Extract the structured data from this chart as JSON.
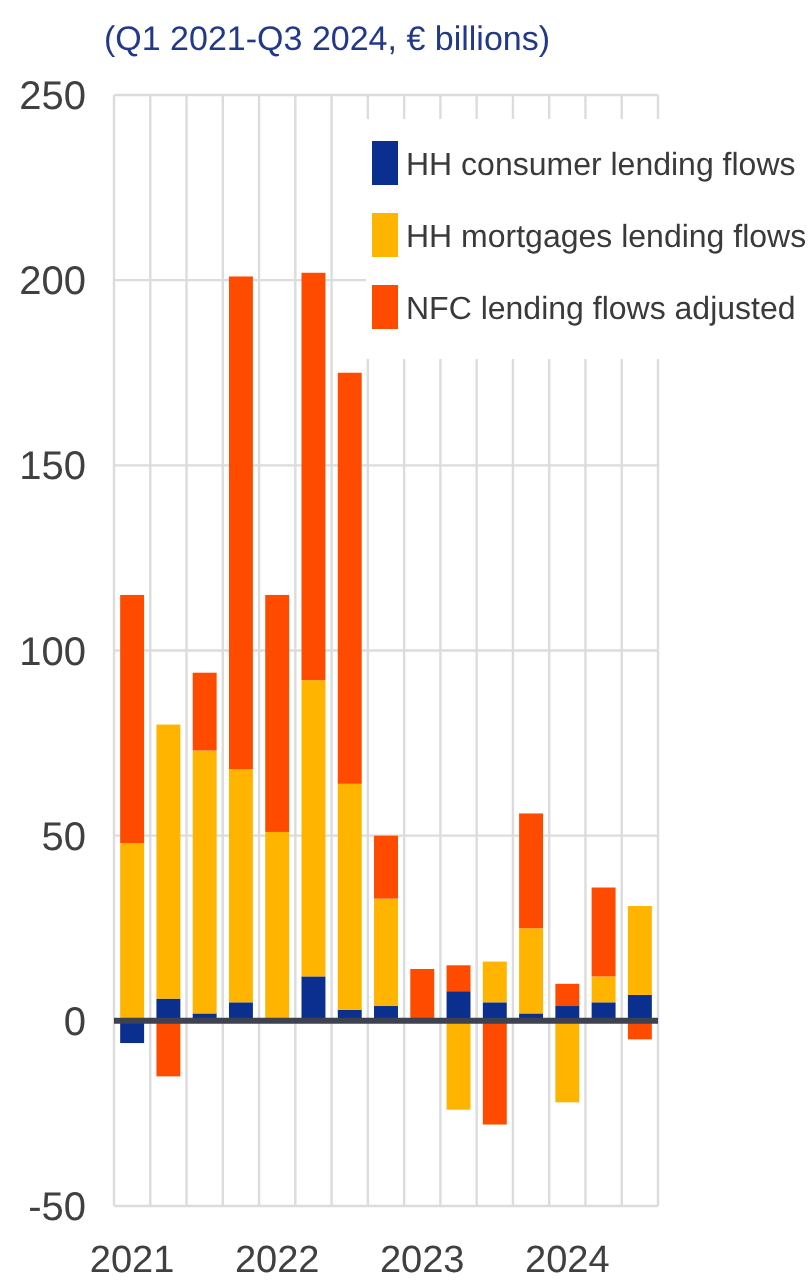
{
  "chart_data": {
    "type": "bar",
    "title": "(Q1 2021-Q3 2024, € billions)",
    "categories": [
      "2021",
      null,
      null,
      null,
      "2022",
      null,
      null,
      null,
      "2023",
      null,
      null,
      null,
      "2024",
      null,
      null
    ],
    "series": [
      {
        "name": "HH consumer lending flows",
        "color": "#0b2f8f",
        "values": [
          -6,
          6,
          2,
          5,
          null,
          12,
          3,
          4,
          null,
          8,
          5,
          2,
          4,
          5,
          7
        ]
      },
      {
        "name": "HH mortgages lending flows",
        "color": "#ffb400",
        "values": [
          48,
          74,
          71,
          63,
          51,
          80,
          61,
          29,
          null,
          -24,
          11,
          23,
          -22,
          7,
          24
        ]
      },
      {
        "name": "NFC lending flows adjusted",
        "color": "#ff4b00",
        "values": [
          67,
          -15,
          21,
          133,
          64,
          110,
          111,
          17,
          14,
          7,
          -28,
          31,
          6,
          24,
          -5
        ]
      }
    ],
    "stacked": true,
    "ylim": [
      -50,
      250
    ],
    "yticks": [
      -50,
      0,
      50,
      100,
      150,
      200,
      250
    ],
    "grid": true,
    "legend": "top right",
    "ref_lines": [
      {
        "axis": "y",
        "value": 0,
        "color": "#3d4150"
      }
    ]
  }
}
